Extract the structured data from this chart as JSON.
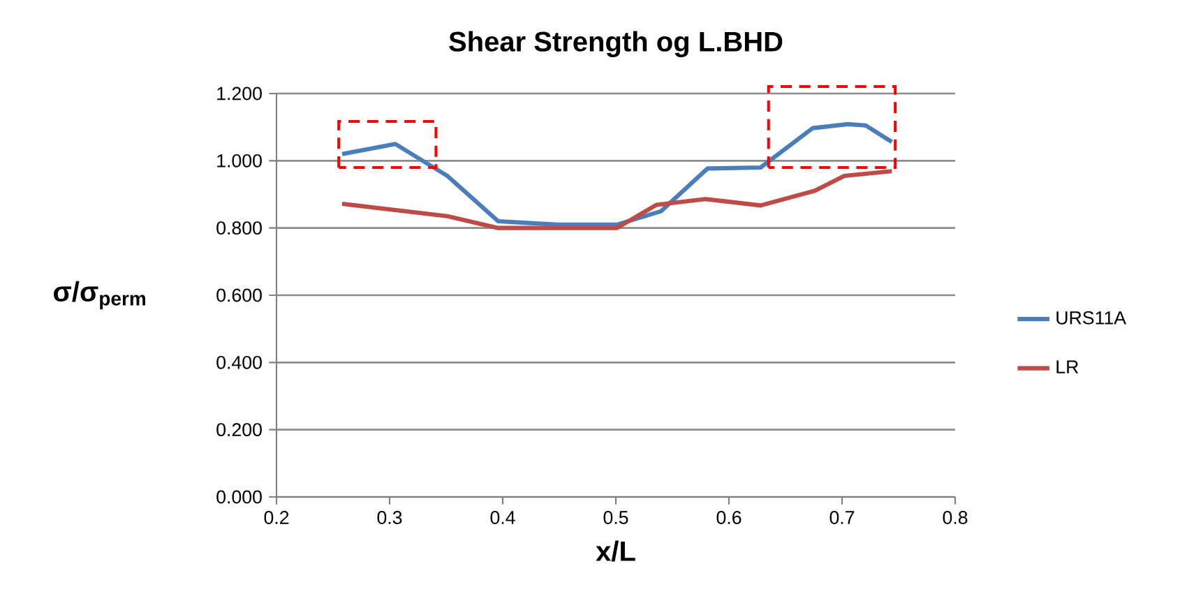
{
  "chart_data": {
    "type": "line",
    "title": "Shear Strength og L.BHD",
    "xlabel": "x/L",
    "ylabel": "σ/σ$_{perm}$",
    "xlim": [
      0.2,
      0.8
    ],
    "xticks": [
      0.2,
      0.3,
      0.4,
      0.5,
      0.6,
      0.7,
      0.8
    ],
    "ylim": [
      0,
      1.2
    ],
    "yticks": [
      {
        "value": 0,
        "label": "0.000"
      },
      {
        "value": 0.2,
        "label": "0.200"
      },
      {
        "value": 0.4,
        "label": "0.400"
      },
      {
        "value": 0.6,
        "label": "0.600"
      },
      {
        "value": 0.8,
        "label": "0.800"
      },
      {
        "value": 1.0,
        "label": "1.000"
      },
      {
        "value": 1.2,
        "label": "1.200"
      }
    ],
    "grid": "y",
    "legend": "right",
    "marker": "none",
    "line_style": "solid",
    "series": [
      {
        "name": "URS11A",
        "color": "#4a7ebb",
        "x": [
          0.258,
          0.305,
          0.351,
          0.396,
          0.449,
          0.501,
          0.54,
          0.581,
          0.628,
          0.674,
          0.705,
          0.721,
          0.744
        ],
        "values": [
          1.02,
          1.05,
          0.955,
          0.82,
          0.81,
          0.81,
          0.85,
          0.977,
          0.98,
          1.097,
          1.109,
          1.105,
          1.056
        ]
      },
      {
        "name": "LR",
        "color": "#be4b48",
        "x": [
          0.258,
          0.351,
          0.396,
          0.501,
          0.536,
          0.579,
          0.628,
          0.676,
          0.702,
          0.744
        ],
        "values": [
          0.872,
          0.835,
          0.8,
          0.8,
          0.869,
          0.886,
          0.867,
          0.911,
          0.955,
          0.969
        ]
      }
    ]
  }
}
